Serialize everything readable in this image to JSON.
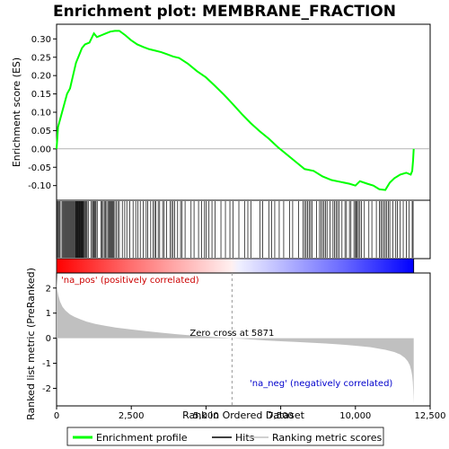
{
  "chart_data": {
    "type": "line",
    "title": "Enrichment plot: MEMBRANE_FRACTION",
    "xlabel": "Rank in Ordered Dataset",
    "ylabel_top": "Enrichment score (ES)",
    "ylabel_bottom": "Ranked list metric (PreRanked)",
    "xlim": [
      0,
      12500
    ],
    "x_ticks": [
      0,
      2500,
      5000,
      7500,
      10000,
      12500
    ],
    "x_tick_labels": [
      "0",
      "2,500",
      "5,000",
      "7,500",
      "10,000",
      "12,500"
    ],
    "es_ylim": [
      -0.14,
      0.34
    ],
    "es_ticks": [
      -0.1,
      -0.05,
      0.0,
      0.05,
      0.1,
      0.15,
      0.2,
      0.25,
      0.3
    ],
    "es_tick_labels": [
      "-0.10",
      "-0.05",
      "0.00",
      "0.05",
      "0.10",
      "0.15",
      "0.20",
      "0.25",
      "0.30"
    ],
    "metric_ylim": [
      -2.7,
      2.6
    ],
    "metric_ticks": [
      -2,
      -1,
      0,
      1,
      2
    ],
    "metric_tick_labels": [
      "-2",
      "-1",
      "0",
      "1",
      "2"
    ],
    "n_genes": 11950,
    "zero_cross_rank": 5871,
    "zero_cross_text": "Zero cross at 5871",
    "pos_label": "'na_pos' (positively correlated)",
    "neg_label": "'na_neg' (negatively correlated)",
    "series": [
      {
        "name": "Enrichment profile",
        "color": "#00ff00",
        "x": [
          0,
          50,
          150,
          250,
          350,
          450,
          550,
          650,
          750,
          850,
          950,
          1100,
          1250,
          1350,
          1500,
          1650,
          1800,
          1950,
          2100,
          2300,
          2500,
          2700,
          2900,
          3100,
          3300,
          3500,
          3700,
          3900,
          4100,
          4400,
          4700,
          5000,
          5300,
          5600,
          5900,
          6200,
          6500,
          6800,
          7100,
          7400,
          7700,
          8000,
          8300,
          8600,
          8900,
          9200,
          9500,
          9800,
          10000,
          10150,
          10400,
          10600,
          10800,
          11000,
          11150,
          11300,
          11500,
          11700,
          11850,
          11900,
          11930,
          11950
        ],
        "y": [
          0.0,
          0.06,
          0.09,
          0.12,
          0.15,
          0.165,
          0.2,
          0.235,
          0.255,
          0.275,
          0.285,
          0.29,
          0.315,
          0.305,
          0.31,
          0.315,
          0.32,
          0.322,
          0.322,
          0.31,
          0.296,
          0.285,
          0.278,
          0.272,
          0.268,
          0.264,
          0.258,
          0.252,
          0.248,
          0.232,
          0.212,
          0.195,
          0.172,
          0.148,
          0.122,
          0.095,
          0.07,
          0.048,
          0.028,
          0.005,
          -0.015,
          -0.035,
          -0.055,
          -0.06,
          -0.075,
          -0.085,
          -0.09,
          -0.095,
          -0.1,
          -0.088,
          -0.095,
          -0.1,
          -0.11,
          -0.112,
          -0.092,
          -0.08,
          -0.07,
          -0.065,
          -0.07,
          -0.06,
          -0.03,
          0.0
        ]
      },
      {
        "name": "Hits",
        "color": "#000000",
        "hit_ranks": [
          15,
          40,
          70,
          110,
          150,
          190,
          230,
          260,
          290,
          320,
          350,
          380,
          410,
          440,
          470,
          500,
          530,
          560,
          590,
          620,
          640,
          660,
          680,
          700,
          720,
          740,
          760,
          780,
          800,
          820,
          840,
          860,
          880,
          900,
          930,
          960,
          990,
          1020,
          1060,
          1150,
          1200,
          1230,
          1260,
          1290,
          1320,
          1360,
          1480,
          1520,
          1560,
          1600,
          1640,
          1680,
          1720,
          1760,
          1790,
          1820,
          1850,
          1880,
          1910,
          1950,
          2000,
          2050,
          2100,
          2200,
          2280,
          2350,
          2450,
          2560,
          2650,
          2720,
          2800,
          2900,
          3000,
          3050,
          3150,
          3230,
          3280,
          3320,
          3400,
          3450,
          3550,
          3600,
          3680,
          3800,
          3850,
          3900,
          3950,
          4050,
          4150,
          4200,
          4300,
          4500,
          4600,
          4750,
          4850,
          4950,
          5000,
          5100,
          5200,
          5300,
          5500,
          5650,
          5800,
          5900,
          6100,
          6300,
          6400,
          6500,
          6800,
          6900,
          7100,
          7200,
          7300,
          7450,
          7600,
          7800,
          7900,
          8100,
          8250,
          8300,
          8350,
          8400,
          8450,
          8500,
          8550,
          8700,
          8800,
          8850,
          8900,
          8950,
          9000,
          9050,
          9150,
          9250,
          9300,
          9350,
          9400,
          9450,
          9550,
          9650,
          9700,
          9800,
          9850,
          9950,
          10000,
          10030,
          10060,
          10100,
          10150,
          10200,
          10300,
          10450,
          10550,
          10700,
          10800,
          10850,
          10900,
          10950,
          11000,
          11050,
          11100,
          11150,
          11250,
          11350,
          11400,
          11500,
          11600,
          11700,
          11800,
          11900,
          11930
        ]
      },
      {
        "name": "Ranking metric scores",
        "color": "#c0c0c0",
        "x": [
          0,
          20,
          60,
          120,
          200,
          300,
          450,
          600,
          800,
          1000,
          1300,
          1600,
          2000,
          2500,
          3000,
          3500,
          4000,
          4500,
          5000,
          5500,
          5871,
          6500,
          7000,
          7500,
          8000,
          8500,
          9000,
          9500,
          10000,
          10500,
          11000,
          11300,
          11500,
          11650,
          11750,
          11820,
          11870,
          11900,
          11920,
          11935,
          11950
        ],
        "y": [
          2.5,
          1.95,
          1.7,
          1.45,
          1.25,
          1.1,
          0.95,
          0.85,
          0.75,
          0.66,
          0.57,
          0.5,
          0.42,
          0.35,
          0.28,
          0.22,
          0.16,
          0.11,
          0.07,
          0.03,
          0.0,
          -0.05,
          -0.09,
          -0.12,
          -0.15,
          -0.18,
          -0.21,
          -0.25,
          -0.3,
          -0.36,
          -0.46,
          -0.55,
          -0.65,
          -0.78,
          -0.92,
          -1.08,
          -1.3,
          -1.5,
          -1.75,
          -2.1,
          -2.6
        ]
      }
    ],
    "legend": [
      "Enrichment profile",
      "Hits",
      "Ranking metric scores"
    ],
    "legend_position": "bottom",
    "grid": false
  }
}
